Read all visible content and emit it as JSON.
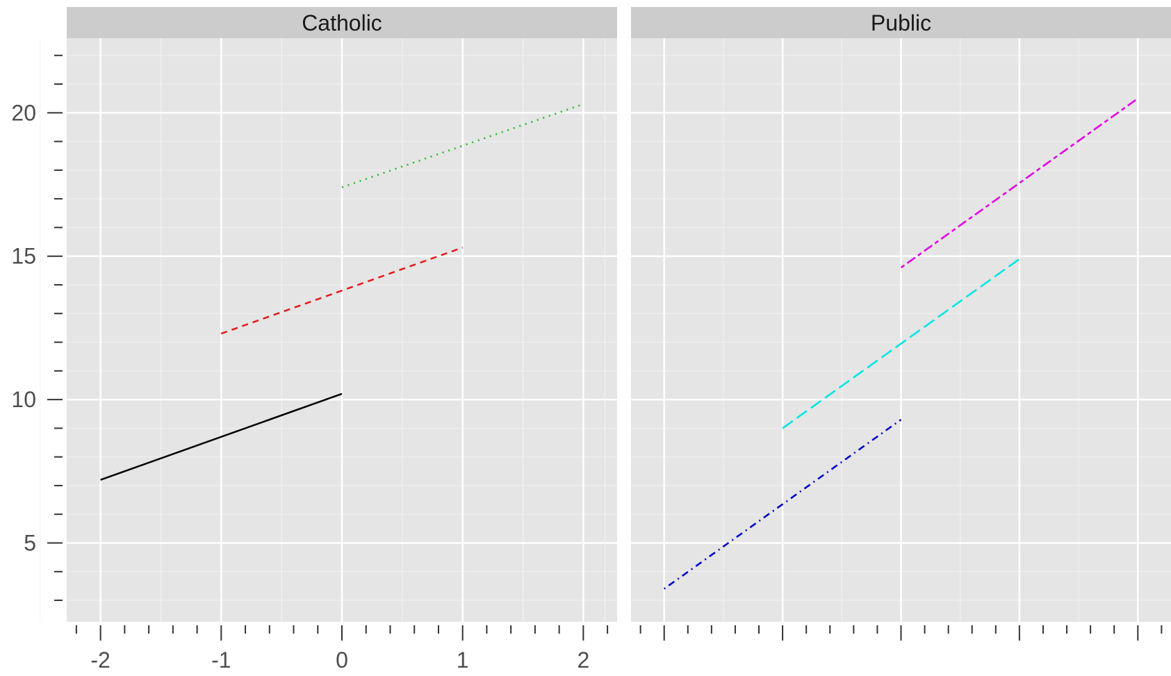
{
  "chart_data": {
    "type": "line",
    "title": "",
    "xlabel": "",
    "ylabel": "",
    "xlim": [
      -2.28,
      2.28
    ],
    "ylim": [
      2.25,
      22.6
    ],
    "x_ticks": [
      -2,
      -1,
      0,
      1,
      2
    ],
    "x_tick_labels": [
      "-2",
      "-1",
      "0",
      "1",
      "2"
    ],
    "y_ticks": [
      5,
      10,
      15,
      20
    ],
    "y_tick_labels": [
      "5",
      "10",
      "15",
      "20"
    ],
    "grid": true,
    "legend": "none",
    "panels": [
      {
        "strip": "Catholic",
        "series": [
          {
            "x": [
              -2,
              0
            ],
            "y": [
              7.2,
              10.2
            ],
            "color": "#000000",
            "linetype": "solid"
          },
          {
            "x": [
              -1,
              1
            ],
            "y": [
              12.3,
              15.3
            ],
            "color": "#e41a1c",
            "linetype": "dashed"
          },
          {
            "x": [
              0,
              2
            ],
            "y": [
              17.4,
              20.3
            ],
            "color": "#22bb22",
            "linetype": "dotted"
          }
        ]
      },
      {
        "strip": "Public",
        "series": [
          {
            "x": [
              -2,
              0
            ],
            "y": [
              3.4,
              9.3
            ],
            "color": "#0000cc",
            "linetype": "dotdash"
          },
          {
            "x": [
              -1,
              1
            ],
            "y": [
              9.0,
              14.9
            ],
            "color": "#00e5e5",
            "linetype": "longdash"
          },
          {
            "x": [
              0,
              2
            ],
            "y": [
              14.6,
              20.5
            ],
            "color": "#e500e5",
            "linetype": "twodash"
          }
        ]
      }
    ]
  }
}
